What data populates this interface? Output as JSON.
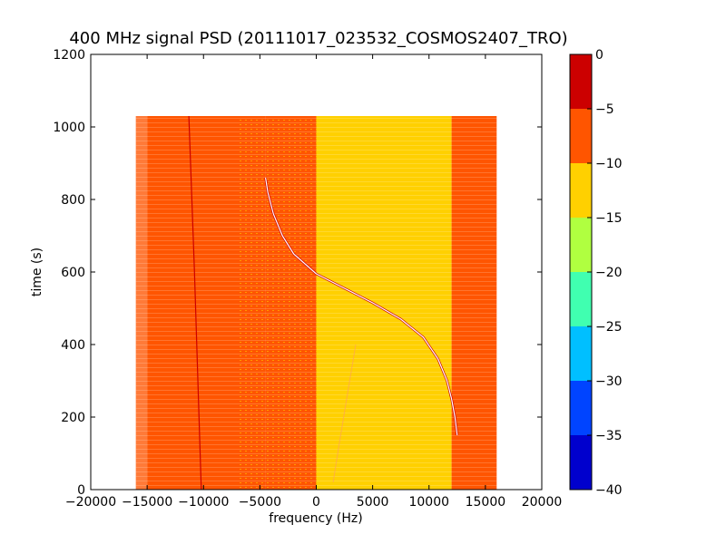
{
  "chart_data": {
    "type": "heatmap",
    "title": "400 MHz signal PSD (20111017_023532_COSMOS2407_TRO)",
    "xlabel": "frequency (Hz)",
    "ylabel": "time (s)",
    "xlim": [
      -20000,
      20000
    ],
    "ylim": [
      0,
      1200
    ],
    "xticks": [
      "−20000",
      "−15000",
      "−10000",
      "−5000",
      "0",
      "5000",
      "10000",
      "15000",
      "20000"
    ],
    "yticks": [
      "0",
      "200",
      "400",
      "600",
      "800",
      "1000",
      "1200"
    ],
    "grid": false,
    "colorbar": {
      "levels": [
        -40,
        -35,
        -30,
        -25,
        -20,
        -15,
        -10,
        -5,
        0
      ],
      "ticklabels": [
        "−40",
        "−35",
        "−30",
        "−25",
        "−20",
        "−15",
        "−10",
        "−5",
        "0"
      ],
      "colors": [
        "#0000cd",
        "#0044ff",
        "#00bfff",
        "#40ffb0",
        "#b0ff40",
        "#ffd000",
        "#ff5500",
        "#cc0000"
      ]
    },
    "data_extent": {
      "freq": [
        -16000,
        16000
      ],
      "time": [
        0,
        1030
      ]
    },
    "regions": [
      {
        "freq": [
          -16000,
          -15000
        ],
        "level": -7.5
      },
      {
        "freq": [
          -15000,
          -4500
        ],
        "level": -7.5
      },
      {
        "freq": [
          -4500,
          0
        ],
        "level": -10
      },
      {
        "freq": [
          0,
          12000
        ],
        "level": -12.5
      },
      {
        "freq": [
          12000,
          16000
        ],
        "level": -10
      }
    ],
    "series": [
      {
        "curve": "vertical_line",
        "color": "#cc0000",
        "points": [
          [
            -11300,
            1030
          ],
          [
            -10800,
            600
          ],
          [
            -10400,
            200
          ],
          [
            -10200,
            0
          ]
        ]
      },
      {
        "curve": "signal_trace",
        "color": "#ffffff",
        "points": [
          [
            -4500,
            860
          ],
          [
            -4300,
            820
          ],
          [
            -3800,
            760
          ],
          [
            -3000,
            700
          ],
          [
            -2000,
            650
          ],
          [
            0,
            595
          ],
          [
            2500,
            555
          ],
          [
            5000,
            515
          ],
          [
            7500,
            470
          ],
          [
            9500,
            420
          ],
          [
            10800,
            360
          ],
          [
            11600,
            300
          ],
          [
            12000,
            250
          ],
          [
            12300,
            200
          ],
          [
            12500,
            150
          ]
        ]
      },
      {
        "curve": "faint_trace",
        "color": "#ff9966",
        "points": [
          [
            1500,
            20
          ],
          [
            2000,
            120
          ],
          [
            2800,
            270
          ],
          [
            3500,
            400
          ]
        ]
      }
    ]
  }
}
